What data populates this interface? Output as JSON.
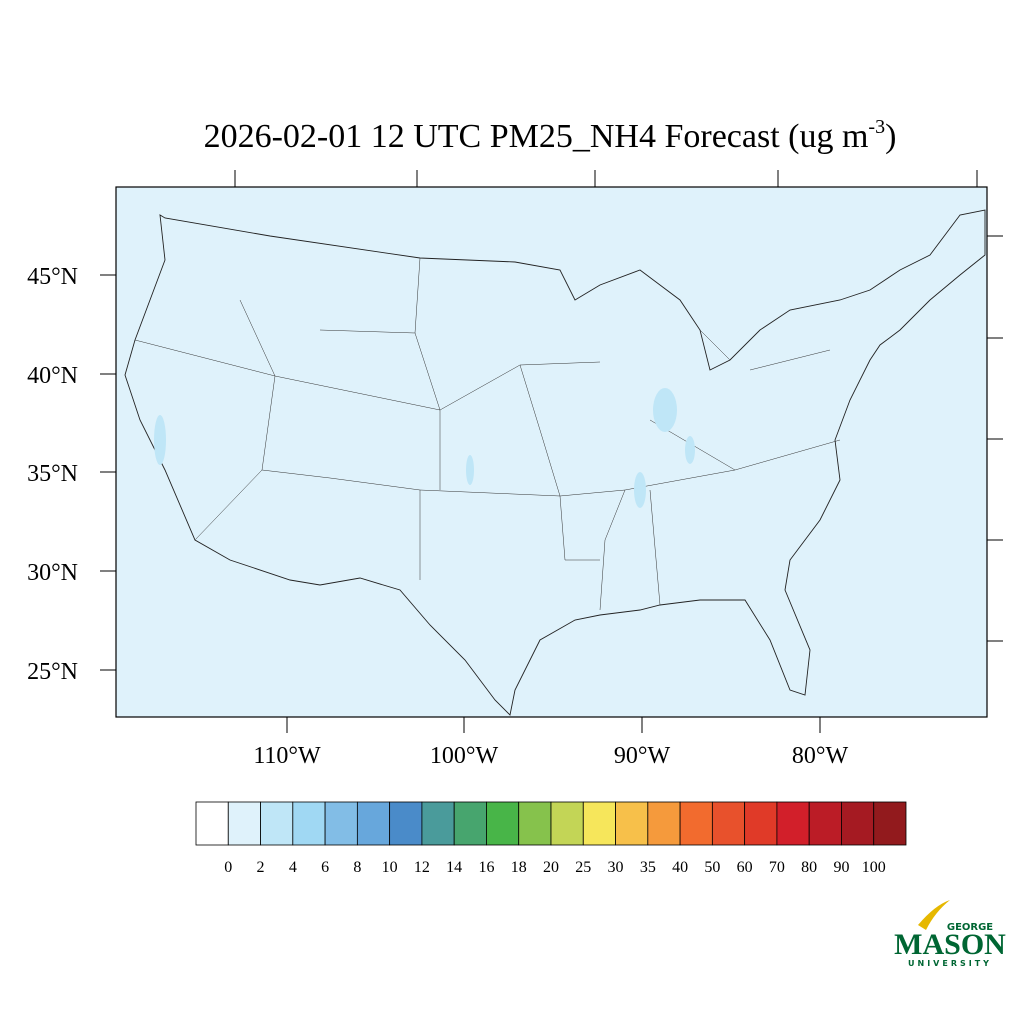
{
  "title": {
    "main": "2026-02-01 12 UTC PM25_NH4 Forecast (ug m",
    "superscript": "-3",
    "close": ")"
  },
  "lat_labels": [
    "45°N",
    "40°N",
    "35°N",
    "30°N",
    "25°N"
  ],
  "lon_labels": [
    "110°W",
    "100°W",
    "90°W",
    "80°W"
  ],
  "colorbar": {
    "levels": [
      0,
      2,
      4,
      6,
      8,
      10,
      12,
      14,
      16,
      18,
      20,
      25,
      30,
      35,
      40,
      50,
      60,
      70,
      80,
      90,
      100
    ],
    "colors": [
      "#ffffff",
      "#dff2fb",
      "#bfe6f7",
      "#a0d8f3",
      "#82bde6",
      "#67a7dc",
      "#4a8bc9",
      "#4a9b9b",
      "#47a56e",
      "#48b548",
      "#86c24c",
      "#c3d556",
      "#f6e65b",
      "#f7c04a",
      "#f59a3c",
      "#f26b2e",
      "#e8512c",
      "#e03a28",
      "#d21f2a",
      "#bb1c26",
      "#a51a22",
      "#921a1d"
    ]
  },
  "logo": {
    "top": "GEORGE",
    "middle": "MASON",
    "bottom": "UNIVERSITY"
  }
}
